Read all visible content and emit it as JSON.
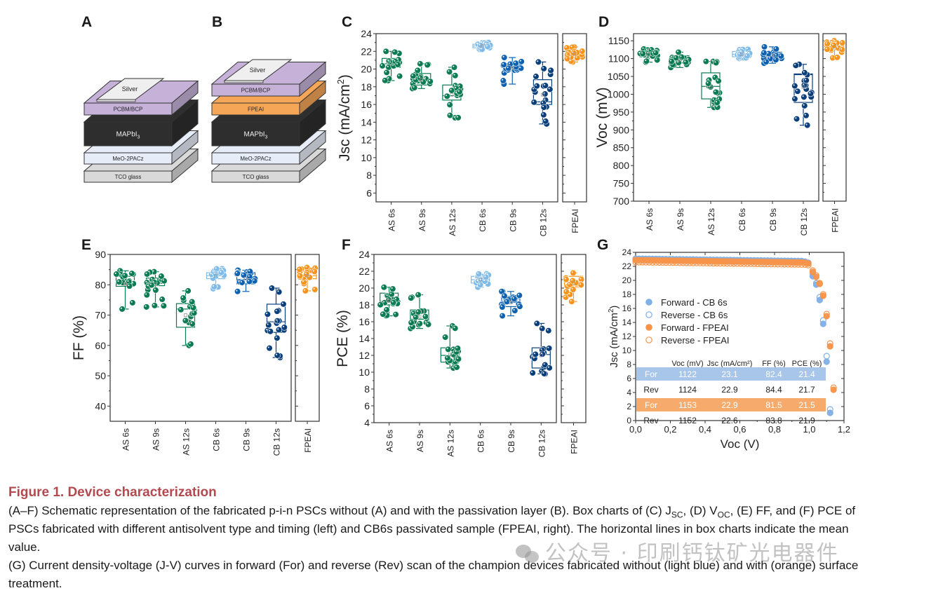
{
  "panel_letters": {
    "A": "A",
    "B": "B",
    "C": "C",
    "D": "D",
    "E": "E",
    "F": "F",
    "G": "G"
  },
  "schematics": {
    "A": {
      "layers": [
        "TCO glass",
        "MeO-2PACz",
        "MAPbI3",
        "PCBM/BCP",
        "Silver"
      ]
    },
    "B": {
      "layers": [
        "TCO glass",
        "MeO-2PACz",
        "MAPbI3",
        "FPEAI",
        "PCBM/BCP",
        "Silver"
      ]
    },
    "layer_colors": {
      "TCO glass": "#d9d9d9",
      "MeO-2PACz": "#e6ecf8",
      "MAPbI3": "#2e2e2e",
      "FPEAI": "#f6a657",
      "PCBM/BCP": "#c6b2d9",
      "Silver": "#efefef"
    }
  },
  "colors": {
    "AS 6s": "#0b7b53",
    "AS 9s": "#0b7b53",
    "AS 12s": "#0b7b53",
    "CB 6s": "#7fbbe9",
    "CB 9s": "#0e62b0",
    "CB 12s": "#0b3f7a",
    "FPEAI": "#f7941d"
  },
  "chart_data": [
    {
      "id": "C",
      "type": "box",
      "ylabel": "Jsc (mA/cm²)",
      "ylabel_main": "Jsc (mA/cm",
      "ylabel_sup": "2",
      "ylabel_end": ")",
      "ylim": [
        5,
        24
      ],
      "yticks": [
        6,
        8,
        10,
        12,
        14,
        16,
        18,
        20,
        22,
        24
      ],
      "categories": [
        "AS 6s",
        "AS 9s",
        "AS 12s",
        "CB 6s",
        "CB 9s",
        "CB 12s"
      ],
      "side_category": "FPEAI",
      "boxes": [
        {
          "q1": 20.2,
          "median": 20.6,
          "q3": 21.2,
          "min": 18.7,
          "max": 22.0,
          "mean": 20.6
        },
        {
          "q1": 18.2,
          "median": 18.6,
          "q3": 19.5,
          "min": 17.8,
          "max": 20.6,
          "mean": 18.8
        },
        {
          "q1": 16.5,
          "median": 17.0,
          "q3": 18.2,
          "min": 14.5,
          "max": 20.2,
          "mean": 17.1
        },
        {
          "q1": 22.4,
          "median": 22.6,
          "q3": 22.8,
          "min": 22.2,
          "max": 23.0,
          "mean": 22.6
        },
        {
          "q1": 19.8,
          "median": 20.1,
          "q3": 20.6,
          "min": 18.3,
          "max": 21.3,
          "mean": 20.1
        },
        {
          "q1": 16.0,
          "median": 16.3,
          "q3": 18.8,
          "min": 13.8,
          "max": 20.8,
          "mean": 17.1
        }
      ],
      "side_box": {
        "q1": 21.3,
        "median": 21.7,
        "q3": 22.1,
        "min": 20.8,
        "max": 22.5,
        "mean": 21.7
      }
    },
    {
      "id": "D",
      "type": "box",
      "ylabel": "Voc (mV)",
      "ylabel_main": "Voc (mV)",
      "ylabel_sup": "",
      "ylabel_end": "",
      "ylim": [
        700,
        1170
      ],
      "yticks": [
        700,
        750,
        800,
        850,
        900,
        950,
        1000,
        1050,
        1100,
        1150
      ],
      "categories": [
        "AS 6s",
        "AS 9s",
        "AS 12s",
        "CB 6s",
        "CB 9s",
        "CB 12s"
      ],
      "side_category": "FPEAI",
      "boxes": [
        {
          "q1": 1105,
          "median": 1112,
          "q3": 1117,
          "min": 1090,
          "max": 1127,
          "mean": 1111
        },
        {
          "q1": 1088,
          "median": 1098,
          "q3": 1108,
          "min": 1075,
          "max": 1118,
          "mean": 1097
        },
        {
          "q1": 987,
          "median": 1022,
          "q3": 1060,
          "min": 963,
          "max": 1092,
          "mean": 1020
        },
        {
          "q1": 1105,
          "median": 1112,
          "q3": 1120,
          "min": 1100,
          "max": 1126,
          "mean": 1112
        },
        {
          "q1": 1102,
          "median": 1110,
          "q3": 1118,
          "min": 1087,
          "max": 1133,
          "mean": 1110
        },
        {
          "q1": 977,
          "median": 1055,
          "q3": 1057,
          "min": 913,
          "max": 1084,
          "mean": 1020
        }
      ],
      "side_box": {
        "q1": 1125,
        "median": 1135,
        "q3": 1145,
        "min": 1102,
        "max": 1150,
        "mean": 1133
      }
    },
    {
      "id": "E",
      "type": "box",
      "ylabel": "FF (%)",
      "ylabel_main": "FF (%)",
      "ylabel_sup": "",
      "ylabel_end": "",
      "ylim": [
        35,
        90
      ],
      "yticks": [
        40,
        50,
        60,
        70,
        80,
        90
      ],
      "categories": [
        "AS 6s",
        "AS 9s",
        "AS 12s",
        "CB 6s",
        "CB 9s",
        "CB 12s"
      ],
      "side_category": "FPEAI",
      "boxes": [
        {
          "q1": 79.5,
          "median": 80.2,
          "q3": 82.8,
          "min": 72.0,
          "max": 84.6,
          "mean": 80.3
        },
        {
          "q1": 79.7,
          "median": 80.5,
          "q3": 82.2,
          "min": 72.7,
          "max": 84.3,
          "mean": 80.2
        },
        {
          "q1": 66.0,
          "median": 72.0,
          "q3": 73.8,
          "min": 60.0,
          "max": 78.0,
          "mean": 70.0
        },
        {
          "q1": 82.0,
          "median": 83.0,
          "q3": 84.0,
          "min": 78.7,
          "max": 85.3,
          "mean": 83.0
        },
        {
          "q1": 80.3,
          "median": 81.8,
          "q3": 84.0,
          "min": 77.8,
          "max": 84.8,
          "mean": 82.0
        },
        {
          "q1": 64.3,
          "median": 67.8,
          "q3": 73.6,
          "min": 56.0,
          "max": 78.9,
          "mean": 68.0
        }
      ],
      "side_box": {
        "q1": 82.0,
        "median": 83.0,
        "q3": 84.4,
        "min": 78.0,
        "max": 85.7,
        "mean": 83.0
      }
    },
    {
      "id": "F",
      "type": "box",
      "ylabel": "PCE (%)",
      "ylabel_main": "PCE (%)",
      "ylabel_sup": "",
      "ylabel_end": "",
      "ylim": [
        4,
        24
      ],
      "yticks": [
        4,
        6,
        8,
        10,
        12,
        14,
        16,
        18,
        20,
        22,
        24
      ],
      "categories": [
        "AS 6s",
        "AS 9s",
        "AS 12s",
        "CB 6s",
        "CB 9s",
        "CB 12s"
      ],
      "side_category": "FPEAI",
      "boxes": [
        {
          "q1": 18.0,
          "median": 18.4,
          "q3": 19.4,
          "min": 16.7,
          "max": 20.1,
          "mean": 18.5
        },
        {
          "q1": 15.8,
          "median": 16.3,
          "q3": 17.4,
          "min": 15.2,
          "max": 19.2,
          "mean": 16.6
        },
        {
          "q1": 11.2,
          "median": 12.0,
          "q3": 12.9,
          "min": 10.5,
          "max": 15.5,
          "mean": 12.1
        },
        {
          "q1": 20.6,
          "median": 21.0,
          "q3": 21.4,
          "min": 20.1,
          "max": 21.7,
          "mean": 21.0
        },
        {
          "q1": 17.8,
          "median": 18.3,
          "q3": 19.0,
          "min": 16.7,
          "max": 19.6,
          "mean": 18.3
        },
        {
          "q1": 10.5,
          "median": 12.1,
          "q3": 12.9,
          "min": 9.8,
          "max": 15.8,
          "mean": 12.0
        }
      ],
      "side_box": {
        "q1": 20.1,
        "median": 20.7,
        "q3": 21.4,
        "min": 18.4,
        "max": 21.8,
        "mean": 20.6
      }
    },
    {
      "id": "G",
      "type": "scatter",
      "xlabel": "Voc (V)",
      "ylabel": "Jsc (mA/cm²)",
      "ylabel_main": "Jsc (mA/cm",
      "ylabel_sup": "2",
      "ylabel_end": ")",
      "xlim": [
        0,
        1.2
      ],
      "ylim": [
        0,
        24
      ],
      "xticks": [
        "0,0",
        "0,2",
        "0,4",
        "0,6",
        "0,8",
        "1,0",
        "1,2"
      ],
      "xtick_values": [
        0,
        0.2,
        0.4,
        0.6,
        0.8,
        1.0,
        1.2
      ],
      "yticks": [
        0,
        2,
        4,
        6,
        8,
        10,
        12,
        14,
        16,
        18,
        20,
        22,
        24
      ],
      "grid": false,
      "legend_position": "center-left",
      "series": [
        {
          "name": "Forward - CB 6s",
          "color": "#7fb0e6",
          "filled": true,
          "jsc": 23.1,
          "voc": 1.122,
          "knee": 0.95,
          "tail": [
            [
              1.02,
              20.6
            ],
            [
              1.04,
              19.4
            ],
            [
              1.06,
              17.2
            ],
            [
              1.08,
              13.8
            ],
            [
              1.1,
              8.4
            ],
            [
              1.12,
              1.1
            ]
          ]
        },
        {
          "name": "Reverse - CB 6s",
          "color": "#7fb0e6",
          "filled": false,
          "jsc": 22.9,
          "voc": 1.124,
          "knee": 0.96,
          "tail": [
            [
              1.02,
              21.0
            ],
            [
              1.04,
              19.6
            ],
            [
              1.06,
              17.6
            ],
            [
              1.08,
              14.3
            ],
            [
              1.1,
              9.2
            ],
            [
              1.12,
              1.6
            ]
          ]
        },
        {
          "name": "Forward - FPEAI",
          "color": "#f7944a",
          "filled": true,
          "jsc": 22.9,
          "voc": 1.153,
          "knee": 0.96,
          "tail": [
            [
              1.02,
              21.2
            ],
            [
              1.04,
              20.5
            ],
            [
              1.06,
              19.5
            ],
            [
              1.08,
              17.8
            ],
            [
              1.1,
              14.9
            ],
            [
              1.12,
              10.6
            ],
            [
              1.14,
              4.4
            ]
          ]
        },
        {
          "name": "Reverse - FPEAI",
          "color": "#f7944a",
          "filled": false,
          "jsc": 22.6,
          "voc": 1.152,
          "knee": 0.97,
          "tail": [
            [
              1.02,
              21.4
            ],
            [
              1.04,
              20.7
            ],
            [
              1.06,
              19.6
            ],
            [
              1.08,
              18.0
            ],
            [
              1.1,
              15.2
            ],
            [
              1.12,
              11.0
            ],
            [
              1.14,
              4.7
            ]
          ]
        }
      ],
      "table": {
        "headers": [
          "",
          "Voc (mV)",
          "Jsc (mA/cm²)",
          "FF (%)",
          "PCE (%)"
        ],
        "rows": [
          {
            "label": "For",
            "voc": "1122",
            "jsc": "23.1",
            "ff": "82.4",
            "pce": "21.4",
            "highlight": "#a7c6ea"
          },
          {
            "label": "Rev",
            "voc": "1124",
            "jsc": "22.9",
            "ff": "84.4",
            "pce": "21.7",
            "highlight": ""
          },
          {
            "label": "For",
            "voc": "1153",
            "jsc": "22.9",
            "ff": "81.5",
            "pce": "21.5",
            "highlight": "#f6ab6c"
          },
          {
            "label": "Rev",
            "voc": "1152",
            "jsc": "22.6",
            "ff": "83.8",
            "pce": "21.9",
            "highlight": ""
          }
        ]
      }
    }
  ],
  "caption": {
    "title": "Figure 1.  Device characterization",
    "line1": "(A–F) Schematic representation of the fabricated p-i-n PSCs without (A) and with the passivation layer (B). Box charts of (C) J",
    "line1_sub1": "SC",
    "line1_mid": ", (D) V",
    "line1_sub2": "OC",
    "line1_end": ", (E) FF, and (F) PCE of",
    "line2": "PSCs fabricated with different antisolvent type and timing (left) and CB6s passivated sample (FPEAI, right). The horizontal lines in box charts indicate the mean",
    "line3": "value.",
    "line4": "(G) Current density-voltage (J-V) curves in forward (For) and reverse (Rev) scan of the champion devices fabricated without (light blue) and with (orange) surface",
    "line5": "treatment."
  },
  "watermark": {
    "text": "公众号 · 印刷钙钛矿光电器件"
  }
}
